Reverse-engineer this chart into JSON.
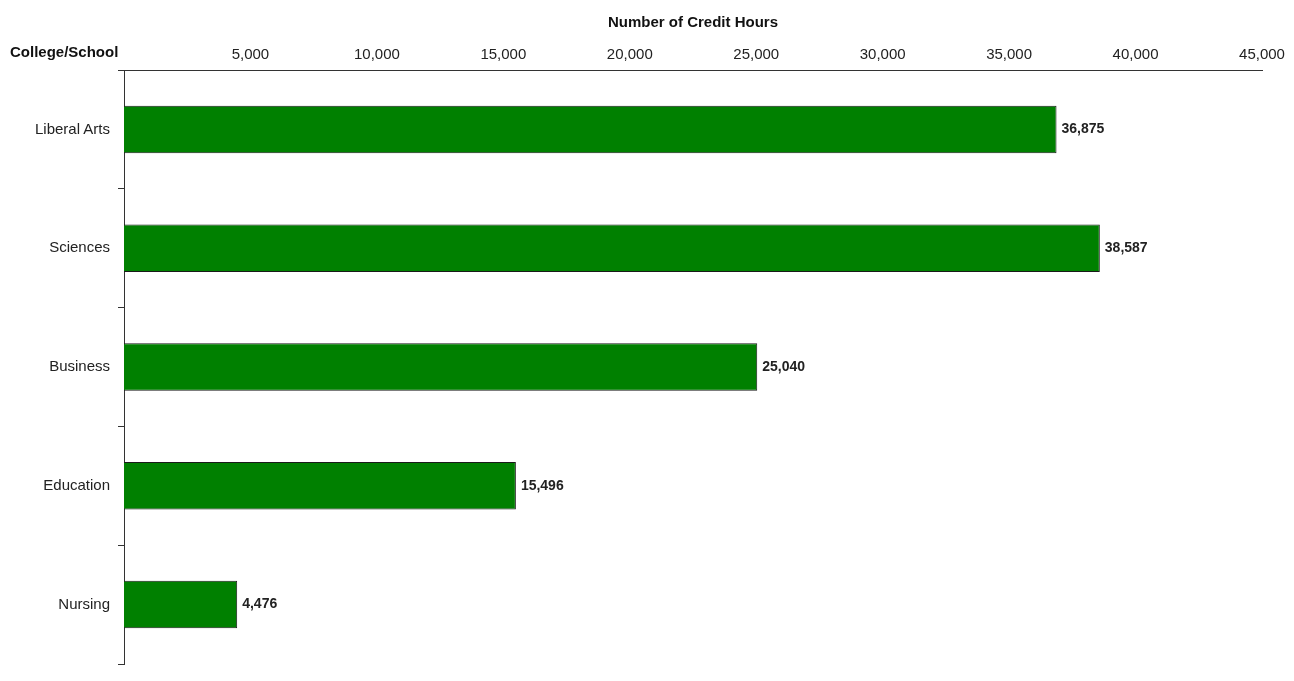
{
  "chart_data": {
    "type": "bar",
    "orientation": "horizontal",
    "xlabel": "Number of Credit Hours",
    "ylabel": "College/School",
    "categories": [
      "Liberal Arts",
      "Sciences",
      "Business",
      "Education",
      "Nursing"
    ],
    "values": [
      36875,
      38587,
      25040,
      15496,
      4476
    ],
    "color": "#008000",
    "value_labels": [
      "36,875",
      "38,587",
      "25,040",
      "15,496",
      "4,476"
    ],
    "xlim": [
      0,
      45000
    ],
    "xticks": [
      {
        "value": 5000,
        "label": "5,000"
      },
      {
        "value": 10000,
        "label": "10,000"
      },
      {
        "value": 15000,
        "label": "15,000"
      },
      {
        "value": 20000,
        "label": "20,000"
      },
      {
        "value": 25000,
        "label": "25,000"
      },
      {
        "value": 30000,
        "label": "30,000"
      },
      {
        "value": 35000,
        "label": "35,000"
      },
      {
        "value": 40000,
        "label": "40,000"
      },
      {
        "value": 45000,
        "label": "45,000"
      }
    ],
    "grid": false,
    "legend": false
  }
}
